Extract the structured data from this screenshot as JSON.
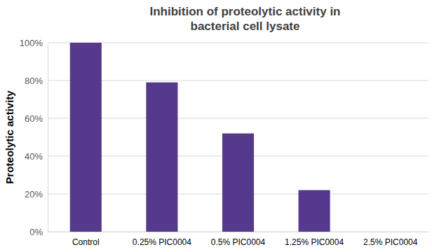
{
  "chart_data": {
    "type": "bar",
    "title": "Inhibition of proteolytic activity in bacterial cell lysate",
    "y_label": "Proteolytic activity",
    "categories": [
      "Control",
      "0.25% PIC0004",
      "0.5% PIC0004",
      "1.25% PIC0004",
      "2.5% PIC0004"
    ],
    "values": [
      100,
      79,
      52,
      22,
      0
    ],
    "color": "#54398c",
    "ylim": [
      0,
      100
    ],
    "yticks": [
      {
        "value": 0,
        "label": "0%"
      },
      {
        "value": 20,
        "label": "20%"
      },
      {
        "value": 40,
        "label": "40%"
      },
      {
        "value": 60,
        "label": "60%"
      },
      {
        "value": 80,
        "label": "80%"
      },
      {
        "value": 100,
        "label": "100%"
      }
    ],
    "grid": true
  }
}
